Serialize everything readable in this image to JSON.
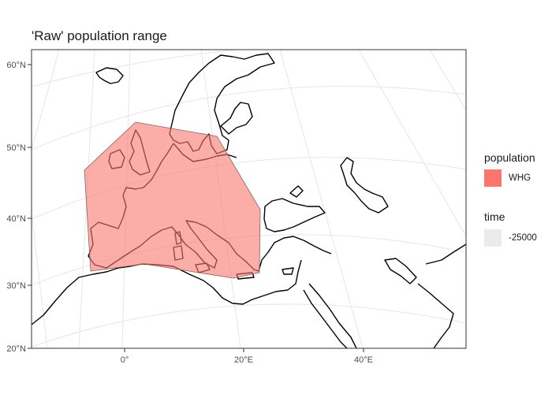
{
  "title": "'Raw' population range",
  "axes": {
    "y_ticks": [
      "60°N",
      "50°N",
      "40°N",
      "30°N",
      "20°N"
    ],
    "x_ticks": [
      "0°",
      "20°E",
      "40°E"
    ]
  },
  "legend": {
    "population": {
      "title": "population",
      "label": "WHG",
      "color": "#F8766D"
    },
    "time": {
      "title": "time",
      "label": "-25000",
      "color": "#EBEBEB"
    }
  },
  "colors": {
    "range_fill": "#F8766D",
    "grid": "#e6e6e6",
    "coast": "#000000",
    "panel_border": "#333333"
  }
}
